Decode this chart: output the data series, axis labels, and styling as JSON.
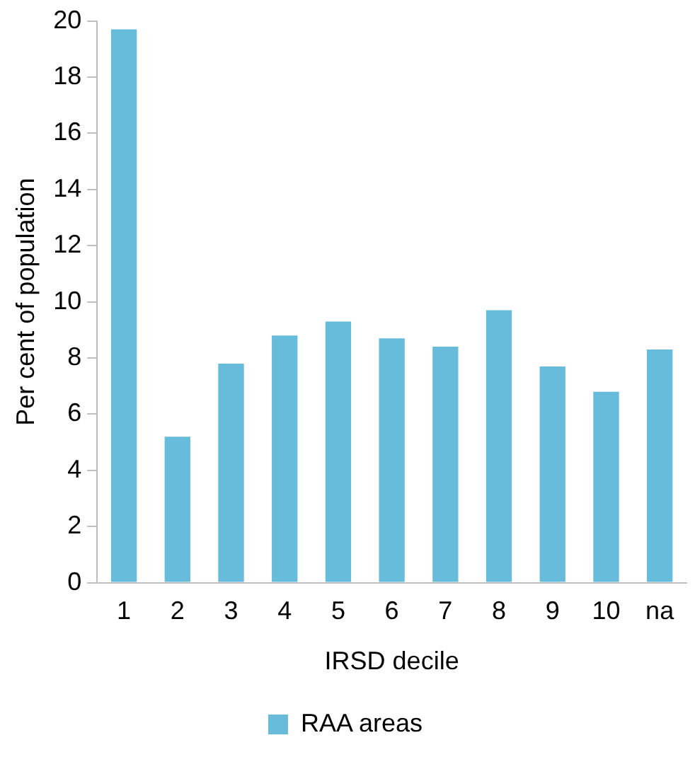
{
  "chart_data": {
    "type": "bar",
    "xlabel": "IRSD decile",
    "ylabel": "Per cent of population",
    "categories": [
      "1",
      "2",
      "3",
      "4",
      "5",
      "6",
      "7",
      "8",
      "9",
      "10",
      "na"
    ],
    "series": [
      {
        "name": "RAA areas",
        "color": "#68bcdb",
        "values": [
          19.7,
          5.2,
          7.8,
          8.8,
          9.3,
          8.7,
          8.4,
          9.7,
          7.7,
          6.8,
          8.3
        ]
      }
    ],
    "ylim": [
      0,
      20
    ],
    "yticks": [
      0,
      2,
      4,
      6,
      8,
      10,
      12,
      14,
      16,
      18,
      20
    ],
    "grid": false,
    "legend": "bottom"
  }
}
